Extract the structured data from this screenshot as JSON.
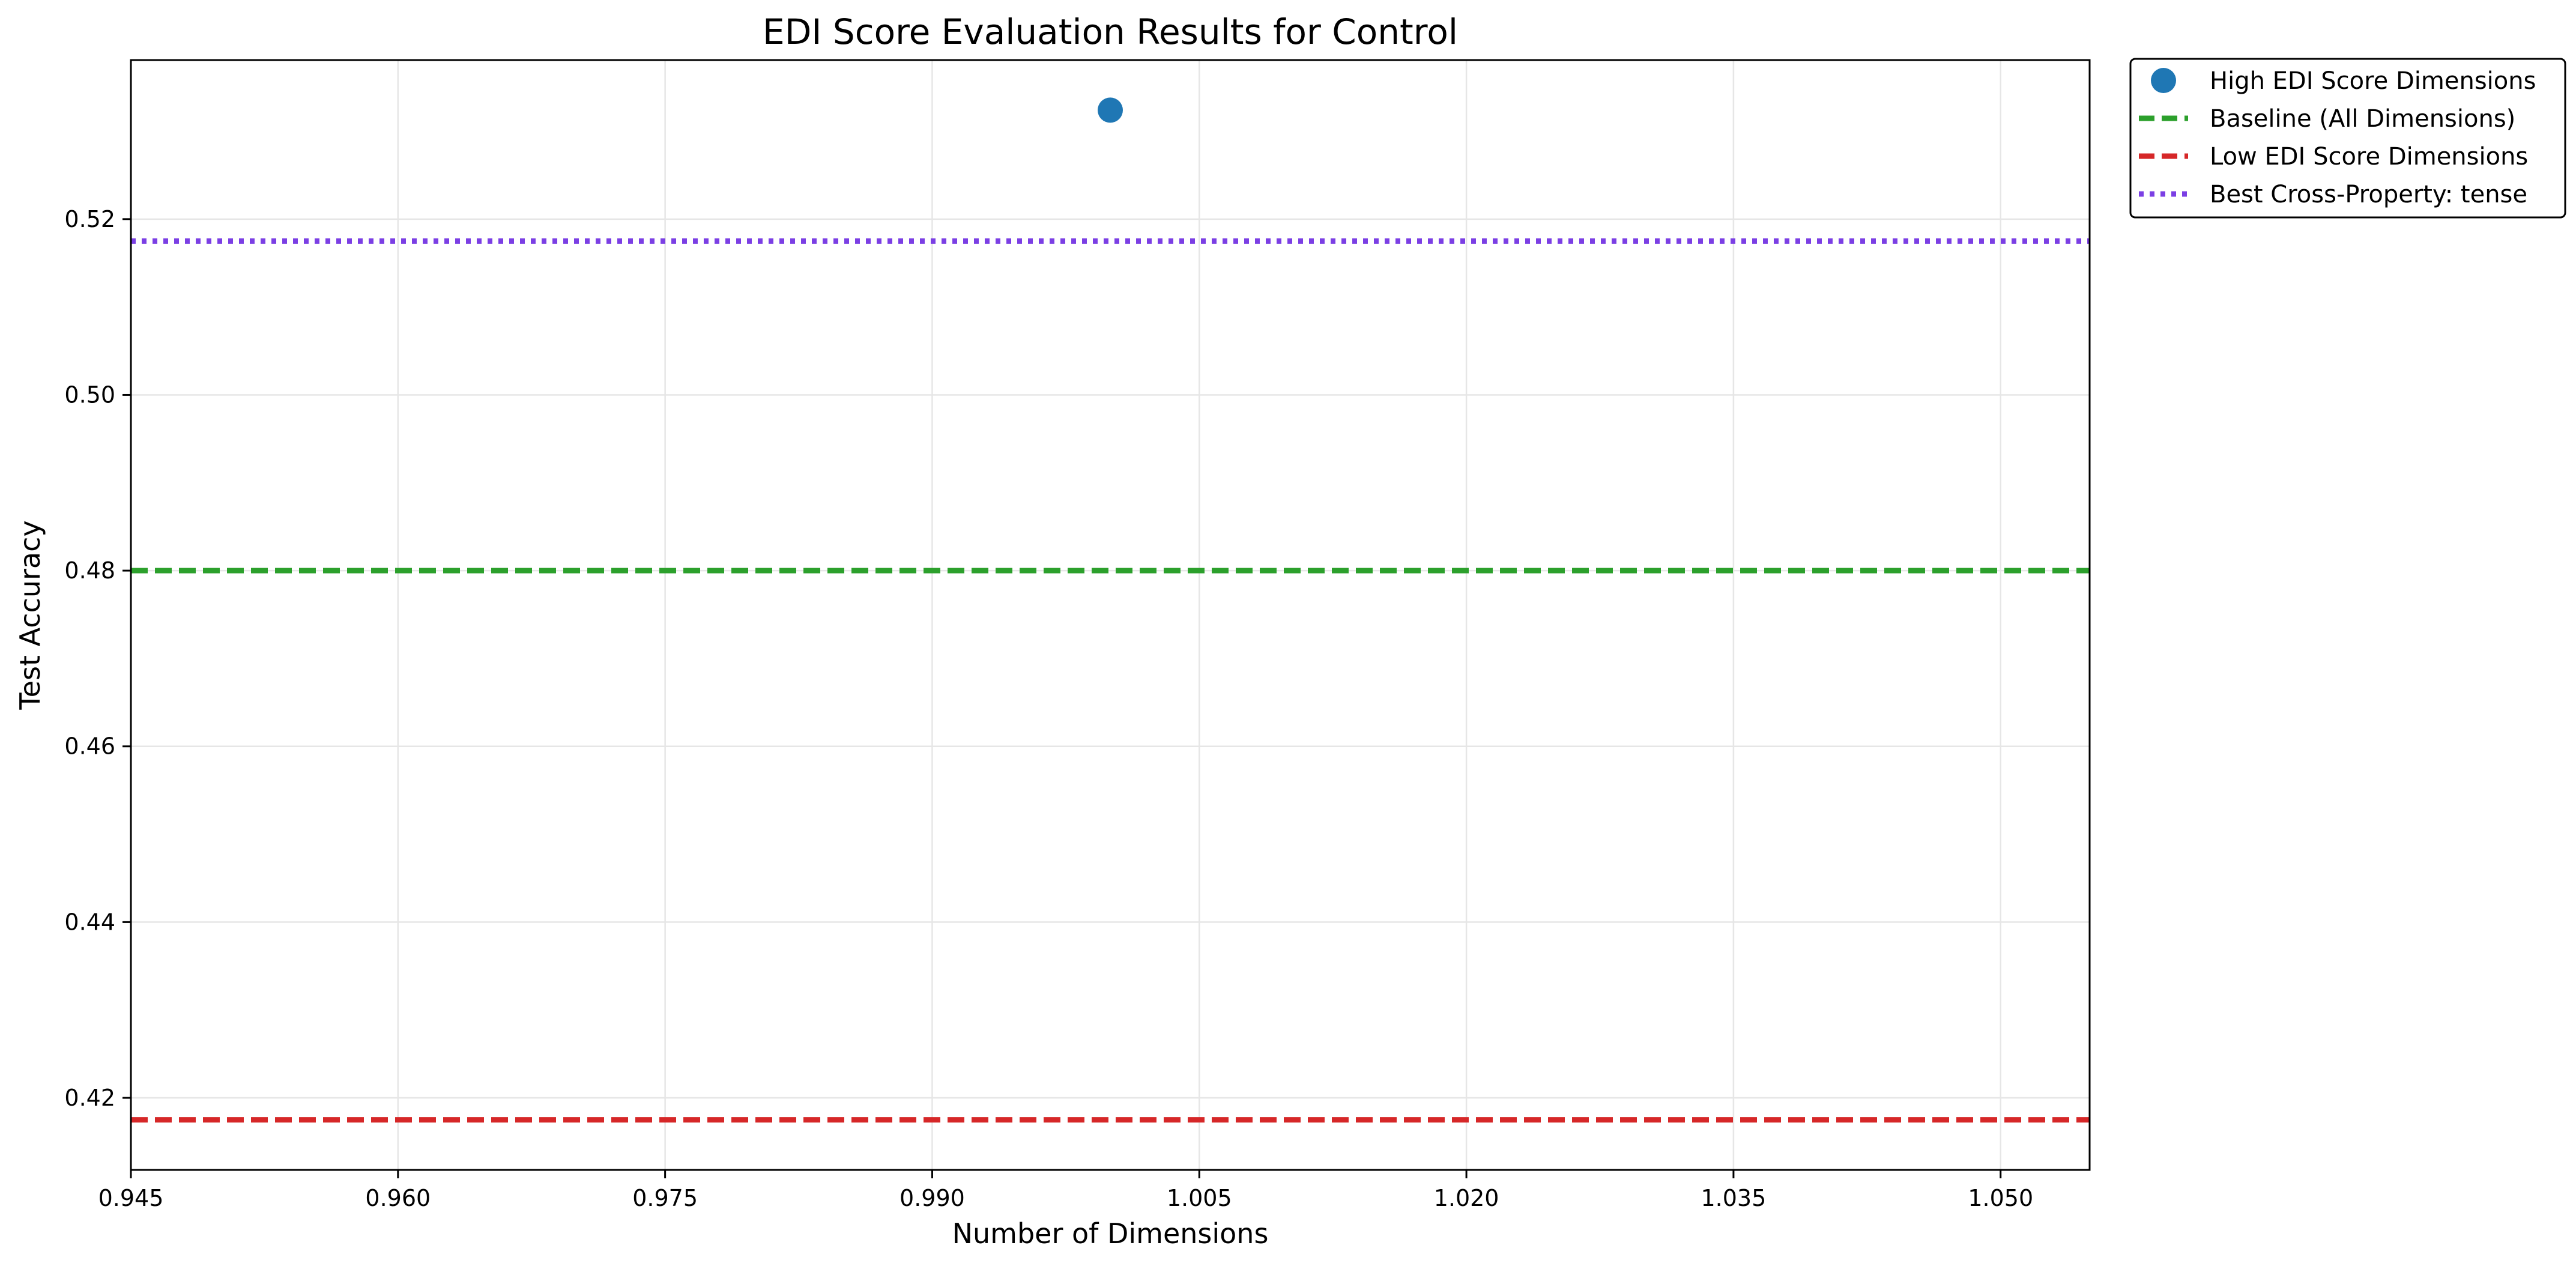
{
  "chart_data": {
    "type": "scatter",
    "title": "EDI Score Evaluation Results for Control",
    "xlabel": "Number of Dimensions",
    "ylabel": "Test Accuracy",
    "xlim": [
      0.945,
      1.055
    ],
    "ylim": [
      0.4118,
      0.5381
    ],
    "xticks": [
      0.945,
      0.96,
      0.975,
      0.99,
      1.005,
      1.02,
      1.035,
      1.05
    ],
    "xtick_labels": [
      "0.945",
      "0.960",
      "0.975",
      "0.990",
      "1.005",
      "1.020",
      "1.035",
      "1.050"
    ],
    "yticks": [
      0.42,
      0.44,
      0.46,
      0.48,
      0.5,
      0.52
    ],
    "ytick_labels": [
      "0.42",
      "0.44",
      "0.46",
      "0.48",
      "0.50",
      "0.52"
    ],
    "grid": true,
    "legend_position": "outside top-right",
    "series": [
      {
        "name": "High EDI Score Dimensions",
        "kind": "scatter",
        "color": "#1f77b4",
        "x": [
          1.0
        ],
        "y": [
          0.5324
        ]
      },
      {
        "name": "Baseline (All Dimensions)",
        "kind": "hline",
        "style": "dashed",
        "color": "#2ca02c",
        "y": 0.48
      },
      {
        "name": "Low EDI Score Dimensions",
        "kind": "hline",
        "style": "dashed",
        "color": "#d62728",
        "y": 0.4175
      },
      {
        "name": "Best Cross-Property: tense",
        "kind": "hline",
        "style": "dotted",
        "color": "#7b3fe4",
        "y": 0.5175
      }
    ]
  }
}
